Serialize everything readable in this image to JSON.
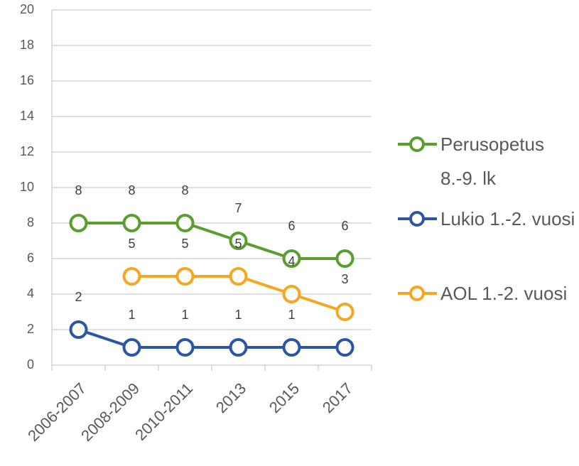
{
  "chart_data": {
    "type": "line",
    "categories": [
      "2006-2007",
      "2008-2009",
      "2010-2011",
      "2013",
      "2015",
      "2017"
    ],
    "series": [
      {
        "name": "Perusopetus 8.-9. lk",
        "color": "#5a9e2f",
        "values": [
          8,
          8,
          8,
          7,
          6,
          6
        ]
      },
      {
        "name": "Lukio 1.-2. vuosi",
        "color": "#2b56a6",
        "values": [
          2,
          1,
          1,
          1,
          1,
          1
        ]
      },
      {
        "name": "AOL 1.-2. vuosi",
        "color": "#f5a623",
        "values": [
          null,
          5,
          5,
          5,
          4,
          3
        ]
      }
    ],
    "ylim": [
      0,
      20
    ],
    "yticks": [
      0,
      2,
      4,
      6,
      8,
      10,
      12,
      14,
      16,
      18,
      20
    ],
    "grid": true,
    "legend": "right"
  }
}
